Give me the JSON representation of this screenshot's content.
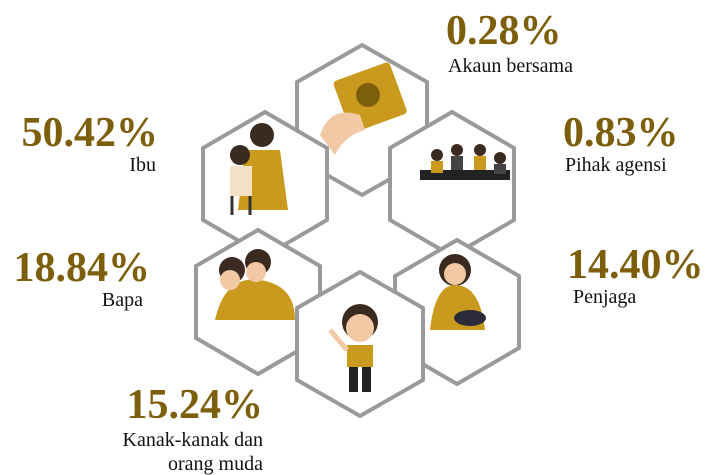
{
  "items": [
    {
      "percent": "0.28%",
      "label": "Akaun bersama"
    },
    {
      "percent": "50.42%",
      "label": "Ibu"
    },
    {
      "percent": "0.83%",
      "label": "Pihak agensi"
    },
    {
      "percent": "18.84%",
      "label": "Bapa"
    },
    {
      "percent": "14.40%",
      "label": "Penjaga"
    },
    {
      "percent": "15.24%",
      "label": [
        "Kanak-kanak dan",
        "orang muda"
      ]
    }
  ]
}
